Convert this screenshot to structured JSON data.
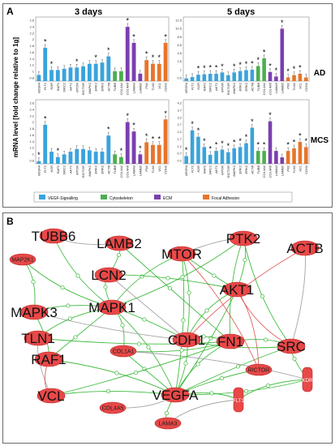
{
  "panel_a": {
    "label": "A",
    "col_titles": [
      "3 days",
      "5 days"
    ],
    "ylabel": "mRNA level [fold change relative to 1g]",
    "row_labels": [
      "AD",
      "MCS"
    ],
    "legend": [
      {
        "name": "VEGF-Signalling",
        "color": "#3aa3dc"
      },
      {
        "name": "Cytoskeleton",
        "color": "#4caf50"
      },
      {
        "name": "ECM",
        "color": "#7b3fb0"
      },
      {
        "name": "Focal Adhesion",
        "color": "#e8742a"
      }
    ],
    "genes_3d": [
      "VEGFA",
      "FLT1",
      "KDR",
      "RAF1",
      "SIRC1",
      "AKT1",
      "MTOR",
      "RICTOR",
      "MAPK1",
      "ERK1",
      "ERK2",
      "ACTB",
      "TUBB",
      "COL1A1",
      "COL4A5",
      "LAMA3",
      "LAMB2",
      "FN1",
      "TLN1",
      "VCL",
      "CDH1"
    ],
    "genes_5d": [
      "VEGFA",
      "FLT1",
      "KDR",
      "RAF1",
      "SIRC1",
      "AKT1",
      "MTOR",
      "RICTOR",
      "MAPK1",
      "ERK1",
      "ERK2",
      "ACTB",
      "TUBB",
      "COL1A1",
      "COL4A5",
      "LAMA3",
      "LAMB2",
      "FN1",
      "TLN1",
      "VCL",
      "CDH1"
    ]
  },
  "chart_data": [
    {
      "type": "bar",
      "title": "3 days",
      "row": "AD",
      "ylim": [
        0.6,
        3.0
      ],
      "yticks": [
        "2.6",
        "2.4",
        "2.2",
        "2",
        "1.8",
        "1.6",
        "1.4",
        "1.2",
        "1",
        "0.8"
      ],
      "categories": [
        "VEGFA",
        "FLT1",
        "KDR",
        "RAF1",
        "SIRC1",
        "AKT1",
        "MTOR",
        "RICTOR",
        "MAPK1",
        "ERK1",
        "ERK2",
        "ACTB",
        "TUBB",
        "COL1A1",
        "COL4A5",
        "LAMA3",
        "LAMB2",
        "FN1",
        "TLN1",
        "VCL",
        "CDH1"
      ],
      "values": [
        0.85,
        1.95,
        1.05,
        1.05,
        1.1,
        1.15,
        1.15,
        1.2,
        1.3,
        1.3,
        1.35,
        1.6,
        1.0,
        1.0,
        2.8,
        2.15,
        0.9,
        1.45,
        1.3,
        1.3,
        2.15
      ],
      "groups": [
        "v",
        "v",
        "v",
        "v",
        "v",
        "v",
        "v",
        "v",
        "v",
        "v",
        "v",
        "v",
        "c",
        "c",
        "e",
        "e",
        "e",
        "f",
        "f",
        "f",
        "f"
      ],
      "stars": [
        false,
        true,
        true,
        false,
        false,
        false,
        true,
        false,
        false,
        true,
        false,
        true,
        false,
        false,
        true,
        true,
        false,
        true,
        true,
        true,
        true
      ]
    },
    {
      "type": "bar",
      "title": "5 days",
      "row": "AD",
      "ylim": [
        0,
        13
      ],
      "yticks": [
        "12.5",
        "10.5",
        "8.5",
        "6.5",
        "4.5",
        "2.5",
        "1",
        "0.5"
      ],
      "categories": [
        "VEGFA",
        "FLT1",
        "KDR",
        "RAF1",
        "SIRC1",
        "AKT1",
        "MTOR",
        "RICTOR",
        "MAPK1",
        "ERK1",
        "ERK2",
        "ACTB",
        "TUBB",
        "COL1A1",
        "COL4A5",
        "LAMA3",
        "LAMB2",
        "FN1",
        "TLN1",
        "VCL",
        "CDH1"
      ],
      "values": [
        0.6,
        0.9,
        1.4,
        1.5,
        1.6,
        1.6,
        1.9,
        1.3,
        1.9,
        2.2,
        2.4,
        2.5,
        3.3,
        5.0,
        2.0,
        1.0,
        11.5,
        0.8,
        1.3,
        1.6,
        0.8
      ],
      "groups": [
        "v",
        "v",
        "v",
        "v",
        "v",
        "v",
        "v",
        "v",
        "v",
        "v",
        "v",
        "v",
        "c",
        "c",
        "e",
        "e",
        "e",
        "f",
        "f",
        "f",
        "f"
      ],
      "stars": [
        false,
        false,
        true,
        true,
        true,
        true,
        true,
        false,
        true,
        true,
        true,
        true,
        true,
        true,
        true,
        true,
        true,
        true,
        true,
        true,
        false
      ]
    },
    {
      "type": "bar",
      "title": "3 days",
      "row": "MCS",
      "ylim": [
        0.6,
        2.8
      ],
      "yticks": [
        "2.6",
        "2.4",
        "2.2",
        "2",
        "1.8",
        "1.6",
        "1.4",
        "1.2",
        "1",
        "0.8"
      ],
      "categories": [
        "VEGFA",
        "FLT1",
        "KDR",
        "RAF1",
        "SIRC1",
        "AKT1",
        "MTOR",
        "RICTOR",
        "MAPK1",
        "ERK1",
        "ERK2",
        "ACTB",
        "TUBB",
        "COL1A1",
        "COL4A5",
        "LAMA3",
        "LAMB2",
        "FN1",
        "TLN1",
        "VCL",
        "CDH1"
      ],
      "values": [
        0.7,
        2.05,
        1.05,
        0.85,
        0.95,
        1.05,
        1.15,
        1.15,
        1.1,
        1.05,
        1.05,
        1.65,
        0.95,
        0.85,
        2.15,
        1.8,
        0.95,
        1.4,
        1.3,
        1.3,
        2.25
      ],
      "groups": [
        "v",
        "v",
        "v",
        "v",
        "v",
        "v",
        "v",
        "v",
        "v",
        "v",
        "v",
        "v",
        "c",
        "c",
        "e",
        "e",
        "e",
        "f",
        "f",
        "f",
        "f"
      ],
      "stars": [
        true,
        true,
        false,
        true,
        false,
        false,
        false,
        false,
        false,
        false,
        false,
        true,
        false,
        true,
        true,
        true,
        true,
        true,
        true,
        true,
        true
      ]
    },
    {
      "type": "bar",
      "title": "5 days",
      "row": "MCS",
      "ylim": [
        0,
        4.6
      ],
      "yticks": [
        "4.2",
        "3.7",
        "3.2",
        "2.7",
        "2.2",
        "1.7",
        "1.2",
        "0.7",
        "0.2"
      ],
      "categories": [
        "VEGFA",
        "FLT1",
        "KDR",
        "RAF1",
        "SIRC1",
        "AKT1",
        "MTOR",
        "RICTOR",
        "MAPK1",
        "ERK1",
        "ERK2",
        "ACTB",
        "TUBB",
        "COL1A1",
        "COL4A5",
        "LAMA3",
        "LAMB2",
        "FN1",
        "TLN1",
        "VCL",
        "CDH1"
      ],
      "values": [
        0.6,
        2.6,
        2.1,
        1.3,
        0.7,
        1.0,
        1.1,
        0.9,
        1.2,
        1.3,
        1.6,
        2.8,
        1.0,
        1.0,
        3.3,
        1.0,
        0.5,
        1.0,
        1.2,
        1.7,
        1.3
      ],
      "groups": [
        "v",
        "v",
        "v",
        "v",
        "v",
        "v",
        "v",
        "v",
        "v",
        "v",
        "v",
        "v",
        "c",
        "c",
        "e",
        "e",
        "e",
        "f",
        "f",
        "f",
        "f"
      ],
      "stars": [
        true,
        true,
        true,
        true,
        true,
        true,
        true,
        true,
        true,
        true,
        true,
        true,
        true,
        true,
        true,
        false,
        false,
        true,
        true,
        true,
        true
      ]
    }
  ],
  "panel_b": {
    "label": "B",
    "nodes": [
      {
        "id": "TUBB6",
        "big": true
      },
      {
        "id": "LAMB2",
        "big": true
      },
      {
        "id": "MTOR",
        "big": true
      },
      {
        "id": "PTK2",
        "big": true
      },
      {
        "id": "ACTB",
        "big": true
      },
      {
        "id": "MAP2K1",
        "big": false
      },
      {
        "id": "LCN2",
        "big": true
      },
      {
        "id": "AKT1",
        "big": true
      },
      {
        "id": "MAPK3",
        "big": true
      },
      {
        "id": "MAPK1",
        "big": true
      },
      {
        "id": "TLN1",
        "big": true
      },
      {
        "id": "CDH1",
        "big": true
      },
      {
        "id": "FN1",
        "big": true
      },
      {
        "id": "SRC",
        "big": true
      },
      {
        "id": "RAF1",
        "big": true
      },
      {
        "id": "COL1A1",
        "big": false
      },
      {
        "id": "RICTOR",
        "big": false
      },
      {
        "id": "KDR",
        "big": false
      },
      {
        "id": "VCL",
        "big": true
      },
      {
        "id": "COL4A5",
        "big": false
      },
      {
        "id": "VEGFA",
        "big": true
      },
      {
        "id": "FLT1",
        "big": false
      },
      {
        "id": "LAMA3",
        "big": false
      }
    ]
  }
}
